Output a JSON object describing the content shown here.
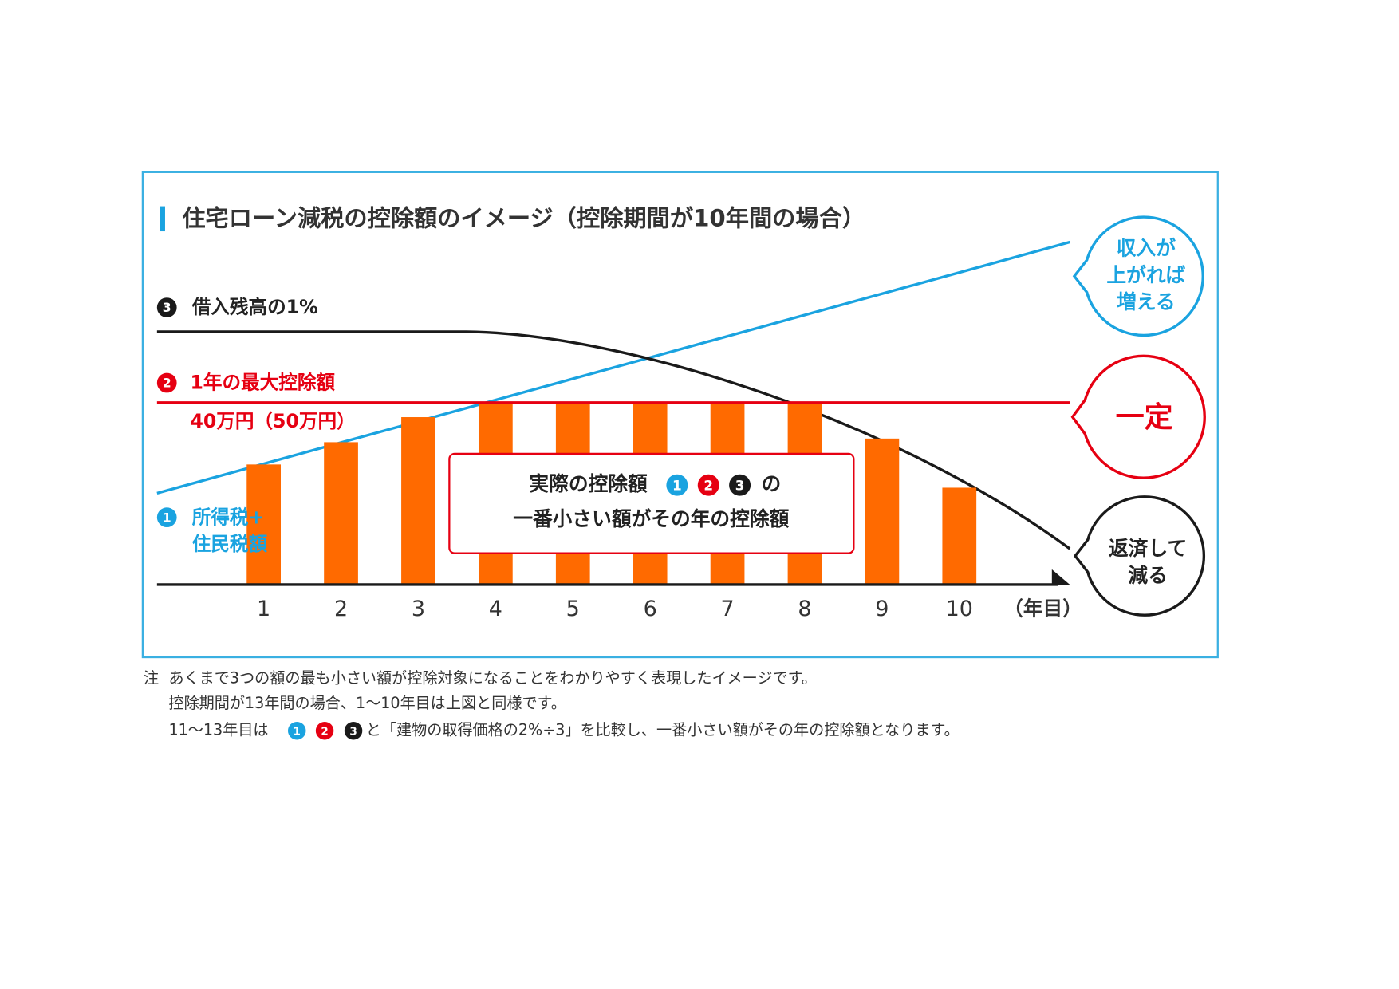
{
  "chart_data": {
    "type": "bar",
    "title": "住宅ローン減税の控除額のイメージ（控除期間が10年間の場合）",
    "categories": [
      "1",
      "2",
      "3",
      "4",
      "5",
      "6",
      "7",
      "8",
      "9",
      "10"
    ],
    "x_unit_label": "（年目）",
    "values": [
      26.4,
      31.3,
      36.8,
      40,
      40,
      40,
      40,
      40,
      32.1,
      21.3
    ],
    "color": "#ff6a00",
    "limit": {
      "value": 40,
      "label": "40万円（50万円）"
    },
    "markers": [
      "1",
      "2",
      "3"
    ],
    "annotations": {
      "line3": "借入残高の1%",
      "line2": "1年の最大控除額",
      "line1": [
        "所得税+",
        "住民税額"
      ],
      "box": [
        "実際の控除額",
        "の",
        "一番小さい額がその年の控除額"
      ],
      "bubble_income": [
        "収入が",
        "上がれば",
        "増える"
      ],
      "bubble_constant": "一定",
      "bubble_repay": [
        "返済して",
        "減る"
      ]
    },
    "notes": {
      "prefix": "注",
      "line1": "あくまで3つの額の最も小さい額が控除対象になることをわかりやすく表現したイメージです。",
      "line2": "控除期間が13年間の場合、1～10年目は上図と同様です。",
      "line3_a": "11～13年目は",
      "line3_b": "と「建物の取得価格の2%÷3」を比較し、一番小さい額がその年の控除額となります。"
    }
  }
}
